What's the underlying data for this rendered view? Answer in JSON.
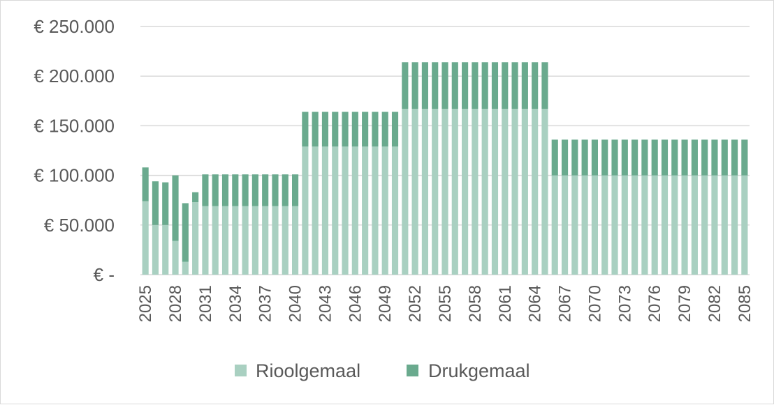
{
  "chart_data": {
    "type": "bar",
    "stacked": true,
    "x_start": 2025,
    "x_end": 2085,
    "x_tick_labels": [
      "2025",
      "2028",
      "2031",
      "2034",
      "2037",
      "2040",
      "2043",
      "2046",
      "2049",
      "2052",
      "2055",
      "2058",
      "2061",
      "2064",
      "2067",
      "2070",
      "2073",
      "2076",
      "2079",
      "2082",
      "2085"
    ],
    "y_tick_labels": [
      "€ 250.000",
      "€ 200.000",
      "€ 150.000",
      "€ 100.000",
      "€ 50.000",
      "€ -"
    ],
    "ylim": [
      0,
      250000
    ],
    "y_ticks": [
      250000,
      200000,
      150000,
      100000,
      50000,
      0
    ],
    "gridlines": true,
    "legend_position": "bottom",
    "colors": {
      "Rioolgemaal": "#a9d0c1",
      "Drukgemaal": "#6aaa8e",
      "grid": "#d9d9d9",
      "text": "#595959"
    },
    "series": [
      {
        "name": "Rioolgemaal",
        "values": [
          74000,
          50000,
          50000,
          34000,
          13000,
          73000,
          69000,
          69000,
          69000,
          69000,
          69000,
          69000,
          69000,
          69000,
          69000,
          69000,
          129000,
          129000,
          129000,
          129000,
          129000,
          129000,
          129000,
          129000,
          129000,
          129000,
          167000,
          167000,
          167000,
          167000,
          167000,
          167000,
          167000,
          167000,
          167000,
          167000,
          167000,
          167000,
          167000,
          167000,
          167000,
          100000,
          100000,
          100000,
          100000,
          100000,
          100000,
          100000,
          100000,
          100000,
          100000,
          100000,
          100000,
          100000,
          100000,
          100000,
          100000,
          100000,
          100000,
          100000,
          100000
        ]
      },
      {
        "name": "Drukgemaal",
        "values": [
          34000,
          44000,
          43000,
          66000,
          59000,
          10000,
          32000,
          32000,
          32000,
          32000,
          32000,
          32000,
          32000,
          32000,
          32000,
          32000,
          35000,
          35000,
          35000,
          35000,
          35000,
          35000,
          35000,
          35000,
          35000,
          35000,
          47000,
          47000,
          47000,
          47000,
          47000,
          47000,
          47000,
          47000,
          47000,
          47000,
          47000,
          47000,
          47000,
          47000,
          47000,
          36000,
          36000,
          36000,
          36000,
          36000,
          36000,
          36000,
          36000,
          36000,
          36000,
          36000,
          36000,
          36000,
          36000,
          36000,
          36000,
          36000,
          36000,
          36000,
          36000
        ]
      }
    ]
  },
  "legend": {
    "items": [
      "Rioolgemaal",
      "Drukgemaal"
    ]
  }
}
